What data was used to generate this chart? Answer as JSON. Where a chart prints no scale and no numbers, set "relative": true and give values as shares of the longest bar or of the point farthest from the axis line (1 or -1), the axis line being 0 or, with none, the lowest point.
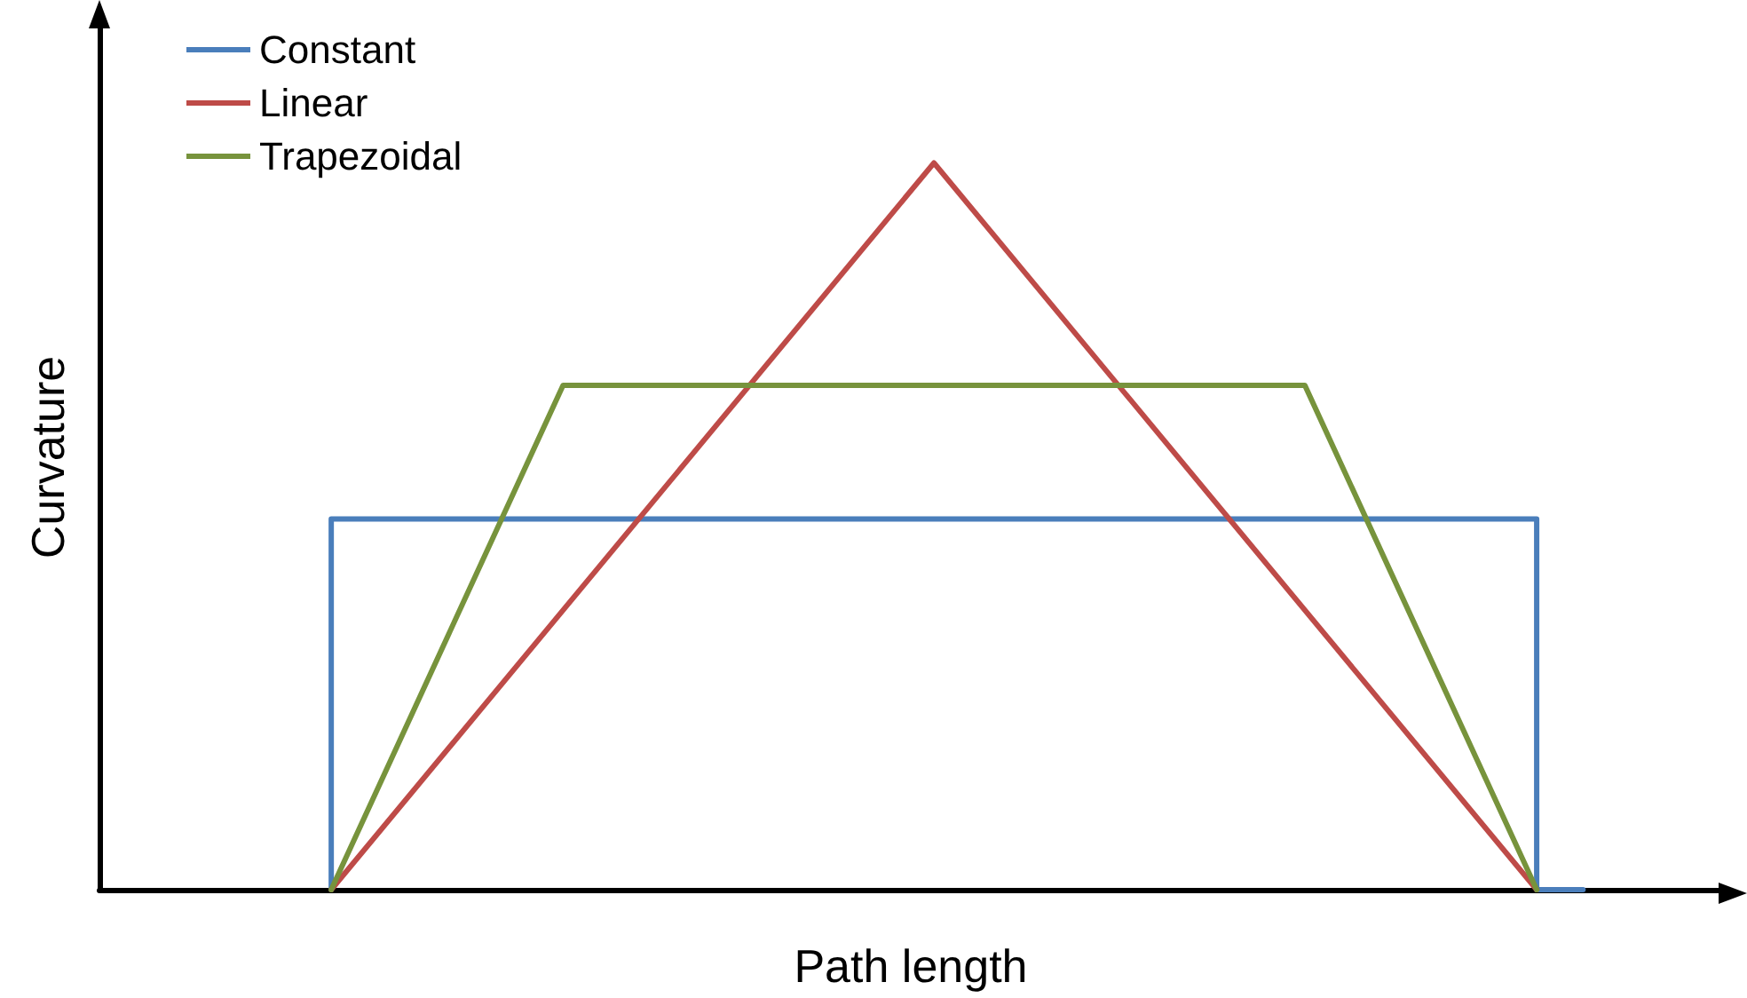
{
  "chart_data": {
    "type": "line",
    "relative": true,
    "xlabel": "Path length",
    "ylabel": "Curvature",
    "grid": false,
    "legend": "top left",
    "marker": "none",
    "line_style": "solid",
    "categories": [
      null,
      null,
      null,
      null,
      null,
      null,
      null,
      null,
      null,
      null,
      null,
      null,
      null,
      null,
      null,
      null,
      null,
      null,
      null,
      null,
      null,
      null,
      null,
      null,
      null,
      null,
      null,
      null,
      null,
      null,
      null,
      null,
      null,
      null,
      null,
      null
    ],
    "series": [
      {
        "name": "Constant",
        "type": "step",
        "color": "#4a7ebb",
        "values": [
          null,
          null,
          null,
          null,
          null,
          0,
          0.51,
          0.51,
          0.51,
          0.51,
          0.51,
          0.51,
          0.51,
          0.51,
          0.51,
          0.51,
          0.51,
          0.51,
          0.51,
          0.51,
          0.51,
          0.51,
          0.51,
          0.51,
          0.51,
          0.51,
          0.51,
          0.51,
          0.51,
          0.51,
          0.51,
          0.51,
          0,
          null,
          null,
          null
        ]
      },
      {
        "name": "Linear",
        "color": "#be4b48",
        "values": [
          null,
          null,
          null,
          null,
          null,
          0,
          null,
          null,
          null,
          null,
          null,
          null,
          null,
          null,
          null,
          null,
          null,
          null,
          1,
          null,
          null,
          null,
          null,
          null,
          null,
          null,
          null,
          null,
          null,
          null,
          null,
          0,
          null,
          null,
          null,
          null
        ]
      },
      {
        "name": "Trapezoidal",
        "color": "#77933c",
        "values": [
          null,
          null,
          null,
          null,
          null,
          0,
          null,
          null,
          null,
          null,
          0.694,
          null,
          null,
          null,
          null,
          null,
          null,
          null,
          null,
          null,
          null,
          null,
          null,
          null,
          null,
          null,
          0.694,
          null,
          null,
          null,
          null,
          0,
          null,
          null,
          null,
          null
        ]
      }
    ]
  }
}
